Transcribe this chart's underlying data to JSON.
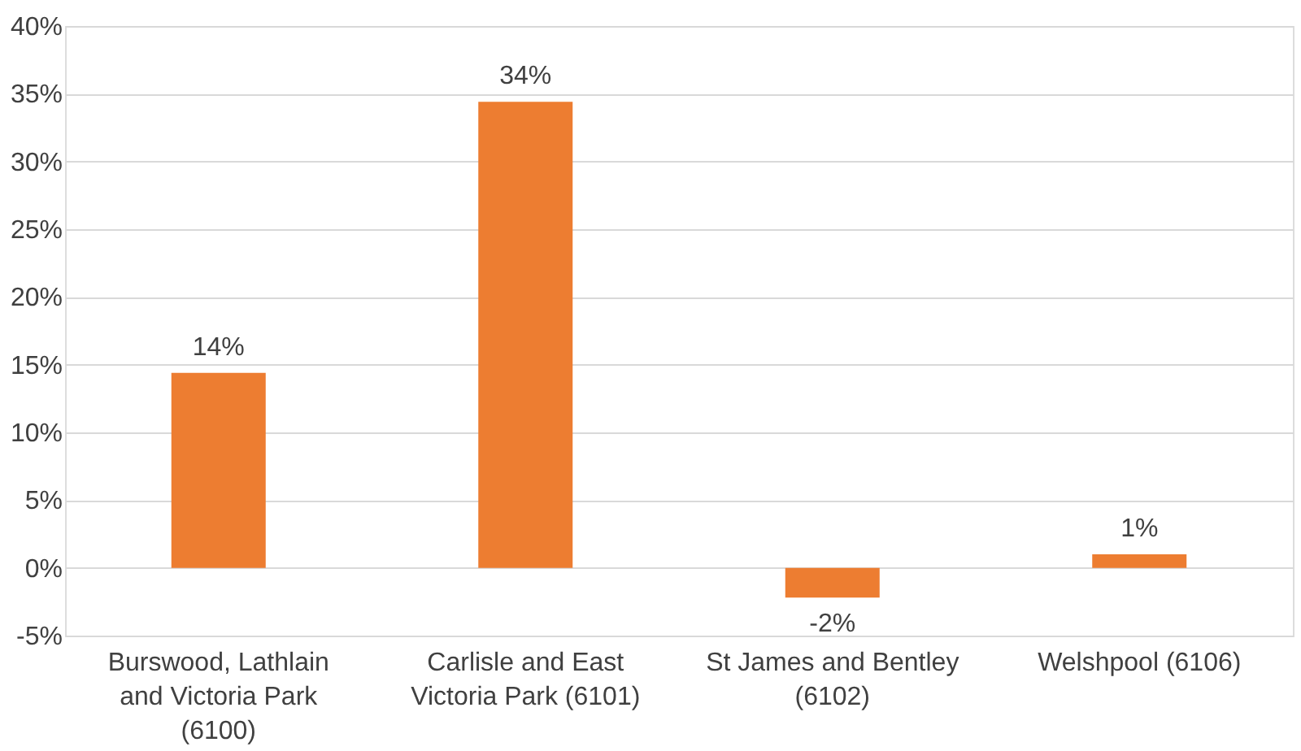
{
  "chart_data": {
    "type": "bar",
    "categories": [
      "Burswood, Lathlain and Victoria Park (6100)",
      "Carlisle and East Victoria Park (6101)",
      "St James and Bentley (6102)",
      "Welshpool (6106)"
    ],
    "values": [
      14.4,
      34.4,
      -2.2,
      1.0
    ],
    "value_labels": [
      "14%",
      "34%",
      "-2%",
      "1%"
    ],
    "color": "#ed7d31",
    "ylim": [
      -5,
      40
    ],
    "yticks": [
      {
        "value": -5,
        "label": "-5%"
      },
      {
        "value": 0,
        "label": "0%"
      },
      {
        "value": 5,
        "label": "5%"
      },
      {
        "value": 10,
        "label": "10%"
      },
      {
        "value": 15,
        "label": "15%"
      },
      {
        "value": 20,
        "label": "20%"
      },
      {
        "value": 25,
        "label": "25%"
      },
      {
        "value": 30,
        "label": "30%"
      },
      {
        "value": 35,
        "label": "35%"
      },
      {
        "value": 40,
        "label": "40%"
      }
    ],
    "grid": "y"
  }
}
